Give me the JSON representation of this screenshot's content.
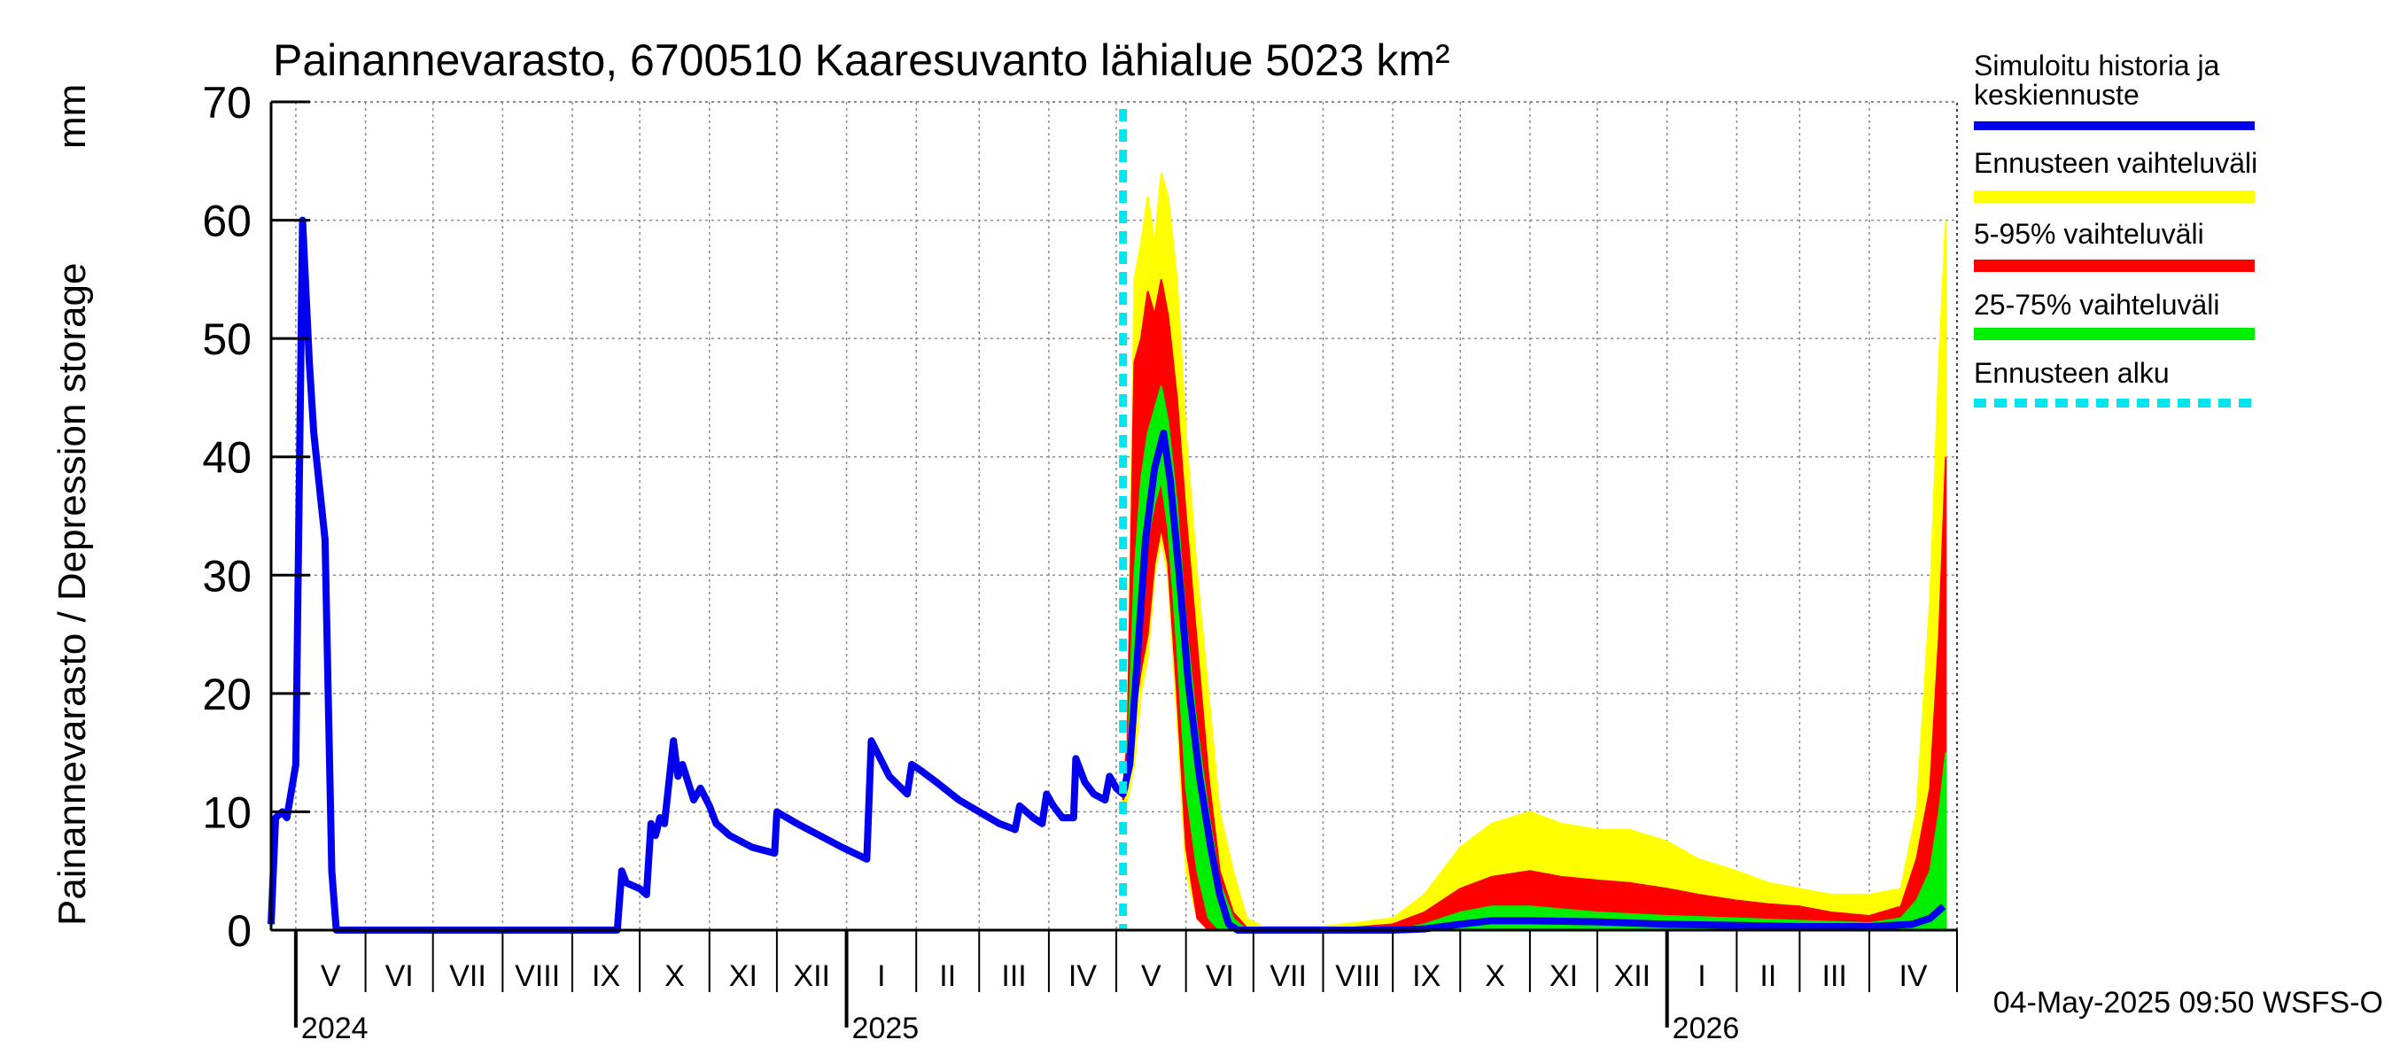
{
  "chart_data": {
    "type": "area",
    "title": "Painannevarasto, 6700510 Kaaresuvanto lähialue 5023 km²",
    "ylabel": "Painannevarasto / Depression storage",
    "yunit": "mm",
    "ylim": [
      0,
      70
    ],
    "yticks": [
      "0",
      "10",
      "20",
      "30",
      "40",
      "50",
      "60",
      "70"
    ],
    "xlim": [
      "2024-04-20",
      "2026-05-10"
    ],
    "grid": true,
    "month_labels": [
      {
        "label": "V",
        "start": "2024-05-01"
      },
      {
        "label": "VI",
        "start": "2024-06-01"
      },
      {
        "label": "VII",
        "start": "2024-07-01"
      },
      {
        "label": "VIII",
        "start": "2024-08-01"
      },
      {
        "label": "IX",
        "start": "2024-09-01"
      },
      {
        "label": "X",
        "start": "2024-10-01"
      },
      {
        "label": "XI",
        "start": "2024-11-01"
      },
      {
        "label": "XII",
        "start": "2024-12-01"
      },
      {
        "label": "I",
        "start": "2025-01-01"
      },
      {
        "label": "II",
        "start": "2025-02-01"
      },
      {
        "label": "III",
        "start": "2025-03-01"
      },
      {
        "label": "IV",
        "start": "2025-04-01"
      },
      {
        "label": "V",
        "start": "2025-05-01"
      },
      {
        "label": "VI",
        "start": "2025-06-01"
      },
      {
        "label": "VII",
        "start": "2025-07-01"
      },
      {
        "label": "VIII",
        "start": "2025-08-01"
      },
      {
        "label": "IX",
        "start": "2025-09-01"
      },
      {
        "label": "X",
        "start": "2025-10-01"
      },
      {
        "label": "XI",
        "start": "2025-11-01"
      },
      {
        "label": "XII",
        "start": "2025-12-01"
      },
      {
        "label": "I",
        "start": "2026-01-01"
      },
      {
        "label": "II",
        "start": "2026-02-01"
      },
      {
        "label": "III",
        "start": "2026-03-01"
      },
      {
        "label": "IV",
        "start": "2026-04-01"
      }
    ],
    "year_labels": [
      {
        "label": "2024",
        "at": "2024-05-01"
      },
      {
        "label": "2025",
        "at": "2025-01-01"
      },
      {
        "label": "2026",
        "at": "2026-01-01"
      }
    ],
    "forecast_start": "2025-05-04",
    "legend_position": "right",
    "series": [
      {
        "name": "Simuloitu historia ja keskiennuste",
        "color": "#0000ee",
        "points": [
          [
            "2024-04-20",
            0.5
          ],
          [
            "2024-04-22",
            9.5
          ],
          [
            "2024-04-25",
            10
          ],
          [
            "2024-04-27",
            9.5
          ],
          [
            "2024-05-01",
            14
          ],
          [
            "2024-05-04",
            60
          ],
          [
            "2024-05-07",
            48
          ],
          [
            "2024-05-09",
            42
          ],
          [
            "2024-05-14",
            33
          ],
          [
            "2024-05-17",
            5
          ],
          [
            "2024-05-19",
            0
          ],
          [
            "2024-06-10",
            0
          ],
          [
            "2024-08-01",
            0
          ],
          [
            "2024-09-05",
            0
          ],
          [
            "2024-09-21",
            0
          ],
          [
            "2024-09-23",
            5
          ],
          [
            "2024-09-25",
            4
          ],
          [
            "2024-10-01",
            3.5
          ],
          [
            "2024-10-04",
            3
          ],
          [
            "2024-10-06",
            9
          ],
          [
            "2024-10-08",
            8
          ],
          [
            "2024-10-10",
            9.5
          ],
          [
            "2024-10-12",
            9
          ],
          [
            "2024-10-16",
            16
          ],
          [
            "2024-10-18",
            13
          ],
          [
            "2024-10-20",
            14
          ],
          [
            "2024-10-25",
            11
          ],
          [
            "2024-10-28",
            12
          ],
          [
            "2024-11-01",
            10.5
          ],
          [
            "2024-11-04",
            9
          ],
          [
            "2024-11-10",
            8
          ],
          [
            "2024-11-20",
            7
          ],
          [
            "2024-11-30",
            6.5
          ],
          [
            "2024-12-01",
            10
          ],
          [
            "2024-12-10",
            9
          ],
          [
            "2024-12-20",
            8
          ],
          [
            "2024-12-30",
            7
          ],
          [
            "2025-01-10",
            6
          ],
          [
            "2025-01-12",
            16
          ],
          [
            "2025-01-16",
            14.5
          ],
          [
            "2025-01-20",
            13
          ],
          [
            "2025-01-28",
            11.5
          ],
          [
            "2025-01-30",
            14
          ],
          [
            "2025-02-03",
            13.5
          ],
          [
            "2025-02-10",
            12.5
          ],
          [
            "2025-02-20",
            11
          ],
          [
            "2025-03-01",
            10
          ],
          [
            "2025-03-10",
            9
          ],
          [
            "2025-03-17",
            8.5
          ],
          [
            "2025-03-19",
            10.5
          ],
          [
            "2025-03-25",
            9.5
          ],
          [
            "2025-03-29",
            9
          ],
          [
            "2025-03-31",
            11.5
          ],
          [
            "2025-04-03",
            10.5
          ],
          [
            "2025-04-07",
            9.5
          ],
          [
            "2025-04-12",
            9.5
          ],
          [
            "2025-04-13",
            14.5
          ],
          [
            "2025-04-17",
            12.5
          ],
          [
            "2025-04-21",
            11.5
          ],
          [
            "2025-04-26",
            11
          ],
          [
            "2025-04-28",
            13
          ],
          [
            "2025-05-01",
            12
          ],
          [
            "2025-05-04",
            11.5
          ],
          [
            "2025-05-07",
            14
          ],
          [
            "2025-05-10",
            22
          ],
          [
            "2025-05-14",
            33
          ],
          [
            "2025-05-18",
            39
          ],
          [
            "2025-05-22",
            42
          ],
          [
            "2025-05-25",
            38
          ],
          [
            "2025-05-29",
            30
          ],
          [
            "2025-06-02",
            21
          ],
          [
            "2025-06-07",
            13
          ],
          [
            "2025-06-12",
            7
          ],
          [
            "2025-06-16",
            3
          ],
          [
            "2025-06-20",
            0.5
          ],
          [
            "2025-06-24",
            0
          ],
          [
            "2025-08-01",
            0
          ],
          [
            "2025-09-01",
            0
          ],
          [
            "2025-09-15",
            0.1
          ],
          [
            "2025-10-01",
            0.5
          ],
          [
            "2025-10-15",
            0.8
          ],
          [
            "2025-11-01",
            0.8
          ],
          [
            "2025-12-01",
            0.7
          ],
          [
            "2026-01-01",
            0.5
          ],
          [
            "2026-02-01",
            0.4
          ],
          [
            "2026-03-01",
            0.3
          ],
          [
            "2026-04-01",
            0.3
          ],
          [
            "2026-04-20",
            0.5
          ],
          [
            "2026-04-28",
            1
          ],
          [
            "2026-05-04",
            2
          ]
        ]
      },
      {
        "name": "Ennusteen vaihteluväli",
        "color": "#ffff00",
        "points": [
          [
            "2025-05-04",
            10.5,
            12.5
          ],
          [
            "2025-05-06",
            11,
            16
          ],
          [
            "2025-05-09",
            14,
            55
          ],
          [
            "2025-05-12",
            20,
            58
          ],
          [
            "2025-05-15",
            23,
            62
          ],
          [
            "2025-05-18",
            30,
            58
          ],
          [
            "2025-05-21",
            33,
            64
          ],
          [
            "2025-05-24",
            30,
            62
          ],
          [
            "2025-05-28",
            18,
            55
          ],
          [
            "2025-06-01",
            5,
            42
          ],
          [
            "2025-06-06",
            1,
            30
          ],
          [
            "2025-06-11",
            0,
            20
          ],
          [
            "2025-06-16",
            0,
            10
          ],
          [
            "2025-06-22",
            0,
            5
          ],
          [
            "2025-06-28",
            0,
            1
          ],
          [
            "2025-07-05",
            0,
            0.3
          ],
          [
            "2025-08-01",
            0,
            0.3
          ],
          [
            "2025-09-01",
            0,
            1
          ],
          [
            "2025-09-15",
            0,
            3
          ],
          [
            "2025-10-01",
            0,
            7
          ],
          [
            "2025-10-15",
            0,
            9
          ],
          [
            "2025-11-01",
            0,
            10
          ],
          [
            "2025-11-15",
            0,
            9
          ],
          [
            "2025-12-01",
            0,
            8.5
          ],
          [
            "2025-12-15",
            0,
            8.5
          ],
          [
            "2026-01-01",
            0,
            7.5
          ],
          [
            "2026-01-15",
            0,
            6
          ],
          [
            "2026-02-01",
            0,
            5
          ],
          [
            "2026-02-15",
            0,
            4
          ],
          [
            "2026-03-01",
            0,
            3.5
          ],
          [
            "2026-03-15",
            0,
            3
          ],
          [
            "2026-04-01",
            0,
            3
          ],
          [
            "2026-04-15",
            0,
            3.5
          ],
          [
            "2026-04-22",
            0,
            10
          ],
          [
            "2026-04-28",
            0,
            28
          ],
          [
            "2026-05-02",
            0,
            48
          ],
          [
            "2026-05-05",
            0,
            60
          ]
        ]
      },
      {
        "name": "5-95% vaihteluväli",
        "color": "#ff0000",
        "points": [
          [
            "2025-05-04",
            11,
            12
          ],
          [
            "2025-05-06",
            12,
            16
          ],
          [
            "2025-05-09",
            18,
            48
          ],
          [
            "2025-05-12",
            22,
            50
          ],
          [
            "2025-05-15",
            25,
            54
          ],
          [
            "2025-05-18",
            31,
            52
          ],
          [
            "2025-05-21",
            34,
            55
          ],
          [
            "2025-05-24",
            31,
            52
          ],
          [
            "2025-05-28",
            20,
            45
          ],
          [
            "2025-06-01",
            7,
            35
          ],
          [
            "2025-06-06",
            1,
            24
          ],
          [
            "2025-06-11",
            0,
            13
          ],
          [
            "2025-06-16",
            0,
            5
          ],
          [
            "2025-06-22",
            0,
            1.5
          ],
          [
            "2025-06-28",
            0,
            0.2
          ],
          [
            "2025-08-01",
            0,
            0
          ],
          [
            "2025-09-01",
            0,
            0.5
          ],
          [
            "2025-09-15",
            0,
            1.5
          ],
          [
            "2025-10-01",
            0,
            3.5
          ],
          [
            "2025-10-15",
            0,
            4.5
          ],
          [
            "2025-11-01",
            0,
            5
          ],
          [
            "2025-11-15",
            0,
            4.5
          ],
          [
            "2025-12-01",
            0,
            4.2
          ],
          [
            "2025-12-15",
            0,
            4
          ],
          [
            "2026-01-01",
            0,
            3.5
          ],
          [
            "2026-01-15",
            0,
            3
          ],
          [
            "2026-02-01",
            0,
            2.5
          ],
          [
            "2026-02-15",
            0,
            2.2
          ],
          [
            "2026-03-01",
            0,
            2
          ],
          [
            "2026-03-15",
            0,
            1.5
          ],
          [
            "2026-04-01",
            0,
            1.2
          ],
          [
            "2026-04-15",
            0,
            2
          ],
          [
            "2026-04-22",
            0,
            6
          ],
          [
            "2026-04-28",
            0,
            12
          ],
          [
            "2026-05-02",
            0,
            25
          ],
          [
            "2026-05-05",
            0,
            40
          ]
        ]
      },
      {
        "name": "25-75% vaihteluväli",
        "color": "#00ee00",
        "points": [
          [
            "2025-05-04",
            11.2,
            11.8
          ],
          [
            "2025-05-06",
            13,
            14
          ],
          [
            "2025-05-09",
            22,
            30
          ],
          [
            "2025-05-12",
            28,
            38
          ],
          [
            "2025-05-15",
            33,
            42
          ],
          [
            "2025-05-18",
            36,
            44
          ],
          [
            "2025-05-21",
            38,
            46
          ],
          [
            "2025-05-24",
            34,
            43
          ],
          [
            "2025-05-28",
            24,
            36
          ],
          [
            "2025-06-01",
            12,
            26
          ],
          [
            "2025-06-06",
            5,
            17
          ],
          [
            "2025-06-11",
            1,
            10
          ],
          [
            "2025-06-16",
            0,
            4
          ],
          [
            "2025-06-22",
            0,
            1
          ],
          [
            "2025-06-28",
            0,
            0
          ],
          [
            "2025-09-01",
            0,
            0
          ],
          [
            "2025-09-15",
            0,
            0.5
          ],
          [
            "2025-10-01",
            0,
            1.5
          ],
          [
            "2025-10-15",
            0,
            2
          ],
          [
            "2025-11-01",
            0,
            2
          ],
          [
            "2025-12-01",
            0,
            1.5
          ],
          [
            "2026-01-01",
            0,
            1.2
          ],
          [
            "2026-02-01",
            0,
            1
          ],
          [
            "2026-03-01",
            0,
            0.8
          ],
          [
            "2026-04-01",
            0,
            0.6
          ],
          [
            "2026-04-15",
            0,
            1
          ],
          [
            "2026-04-22",
            0,
            2.5
          ],
          [
            "2026-04-28",
            0,
            5
          ],
          [
            "2026-05-02",
            0,
            10
          ],
          [
            "2026-05-05",
            0,
            15
          ]
        ]
      },
      {
        "name": "Ennusteen alku",
        "color": "#00e5ee",
        "dashed": true
      }
    ]
  },
  "footer_timestamp": "04-May-2025 09:50 WSFS-O"
}
